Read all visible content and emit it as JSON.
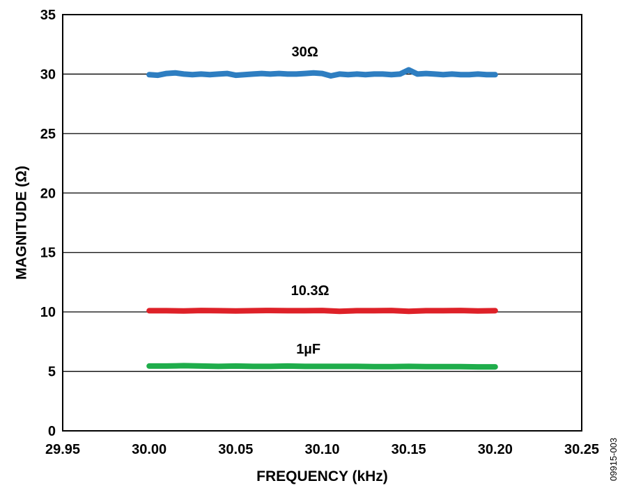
{
  "figure_id": "09915-003",
  "chart_data": {
    "type": "line",
    "title": "",
    "xlabel": "FREQUENCY (kHz)",
    "ylabel": "MAGNITUDE (Ω)",
    "xlim": [
      29.95,
      30.25
    ],
    "ylim": [
      0,
      35
    ],
    "x_ticks": [
      "29.95",
      "30.00",
      "30.05",
      "30.10",
      "30.15",
      "30.20",
      "30.25"
    ],
    "y_ticks": [
      "0",
      "5",
      "10",
      "15",
      "20",
      "25",
      "30",
      "35"
    ],
    "grid": "horizontal",
    "legend": "none",
    "series": [
      {
        "name": "30Ω",
        "color": "#2E7EC1",
        "x": [
          30.0,
          30.005,
          30.01,
          30.015,
          30.02,
          30.025,
          30.03,
          30.035,
          30.04,
          30.045,
          30.05,
          30.055,
          30.06,
          30.065,
          30.07,
          30.075,
          30.08,
          30.085,
          30.09,
          30.095,
          30.1,
          30.105,
          30.11,
          30.115,
          30.12,
          30.125,
          30.13,
          30.135,
          30.14,
          30.145,
          30.15,
          30.155,
          30.16,
          30.165,
          30.17,
          30.175,
          30.18,
          30.185,
          30.19,
          30.195,
          30.2
        ],
        "y": [
          29.95,
          29.9,
          30.05,
          30.1,
          30.0,
          29.95,
          30.0,
          29.95,
          30.0,
          30.05,
          29.9,
          29.95,
          30.0,
          30.05,
          30.0,
          30.05,
          30.0,
          30.0,
          30.05,
          30.1,
          30.05,
          29.85,
          30.0,
          29.95,
          30.0,
          29.95,
          30.0,
          30.0,
          29.95,
          30.0,
          30.35,
          30.0,
          30.05,
          30.0,
          29.95,
          30.0,
          29.95,
          29.95,
          30.0,
          29.95,
          29.95
        ]
      },
      {
        "name": "10.3Ω",
        "color": "#DE2128",
        "x": [
          30.0,
          30.01,
          30.02,
          30.03,
          30.04,
          30.05,
          30.06,
          30.07,
          30.08,
          30.09,
          30.1,
          30.11,
          30.12,
          30.13,
          30.14,
          30.15,
          30.16,
          30.17,
          30.18,
          30.19,
          30.2
        ],
        "y": [
          10.1,
          10.1,
          10.08,
          10.12,
          10.1,
          10.08,
          10.1,
          10.12,
          10.1,
          10.1,
          10.12,
          10.05,
          10.1,
          10.1,
          10.12,
          10.05,
          10.1,
          10.1,
          10.12,
          10.08,
          10.1
        ]
      },
      {
        "name": "1µF",
        "color": "#1FAD4B",
        "x": [
          30.0,
          30.01,
          30.02,
          30.03,
          30.04,
          30.05,
          30.06,
          30.07,
          30.08,
          30.09,
          30.1,
          30.11,
          30.12,
          30.13,
          30.14,
          30.15,
          30.16,
          30.17,
          30.18,
          30.19,
          30.2
        ],
        "y": [
          5.45,
          5.45,
          5.48,
          5.45,
          5.42,
          5.45,
          5.42,
          5.42,
          5.45,
          5.42,
          5.42,
          5.42,
          5.42,
          5.4,
          5.4,
          5.42,
          5.4,
          5.4,
          5.4,
          5.38,
          5.38
        ]
      }
    ],
    "annotations": [
      {
        "text": "30Ω",
        "x": 30.09,
        "y": 31.5
      },
      {
        "text": "10.3Ω",
        "x": 30.093,
        "y": 11.4
      },
      {
        "text": "1µF",
        "x": 30.092,
        "y": 6.5
      }
    ]
  }
}
